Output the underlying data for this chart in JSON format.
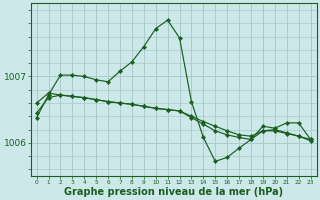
{
  "background_color": "#cce8e8",
  "grid_color": "#aacccc",
  "line_color": "#1a5e20",
  "marker_color": "#1a5e20",
  "xlabel": "Graphe pression niveau de la mer (hPa)",
  "xlabel_fontsize": 7,
  "ytick_labels": [
    "1006",
    "1007"
  ],
  "ytick_values": [
    1006.0,
    1007.0
  ],
  "ylim": [
    1005.5,
    1008.1
  ],
  "xlim": [
    -0.5,
    23.5
  ],
  "xtick_values": [
    0,
    1,
    2,
    3,
    4,
    5,
    6,
    7,
    8,
    9,
    10,
    11,
    12,
    13,
    14,
    15,
    16,
    17,
    18,
    19,
    20,
    21,
    22,
    23
  ],
  "series1_x": [
    0,
    1,
    2,
    3,
    4,
    5,
    6,
    7,
    8,
    9,
    10,
    11,
    12,
    13,
    14,
    15,
    16,
    17,
    18,
    19,
    20,
    21,
    22,
    23
  ],
  "series1_y": [
    1006.6,
    1006.75,
    1006.72,
    1006.7,
    1006.68,
    1006.65,
    1006.62,
    1006.6,
    1006.58,
    1006.55,
    1006.52,
    1006.5,
    1006.48,
    1006.4,
    1006.32,
    1006.25,
    1006.18,
    1006.12,
    1006.1,
    1006.18,
    1006.2,
    1006.15,
    1006.1,
    1006.05
  ],
  "series2_x": [
    0,
    1,
    2,
    3,
    4,
    5,
    6,
    7,
    8,
    9,
    10,
    11,
    12,
    13,
    14,
    15,
    16,
    17,
    18,
    19,
    20,
    21,
    22,
    23
  ],
  "series2_y": [
    1006.45,
    1006.68,
    1006.72,
    1006.7,
    1006.68,
    1006.65,
    1006.62,
    1006.6,
    1006.58,
    1006.55,
    1006.52,
    1006.5,
    1006.48,
    1006.38,
    1006.28,
    1006.18,
    1006.12,
    1006.08,
    1006.05,
    1006.18,
    1006.18,
    1006.14,
    1006.1,
    1006.03
  ],
  "series3_x": [
    0,
    1,
    2,
    3,
    4,
    5,
    6,
    7,
    8,
    9,
    10,
    11,
    12,
    13,
    14,
    15,
    16,
    17,
    18,
    19,
    20,
    21,
    22,
    23
  ],
  "series3_y": [
    1006.38,
    1006.72,
    1007.02,
    1007.02,
    1007.0,
    1006.95,
    1006.92,
    1007.08,
    1007.22,
    1007.45,
    1007.72,
    1007.85,
    1007.58,
    1006.62,
    1006.08,
    1005.72,
    1005.78,
    1005.92,
    1006.05,
    1006.25,
    1006.22,
    1006.3,
    1006.3,
    1006.05
  ]
}
